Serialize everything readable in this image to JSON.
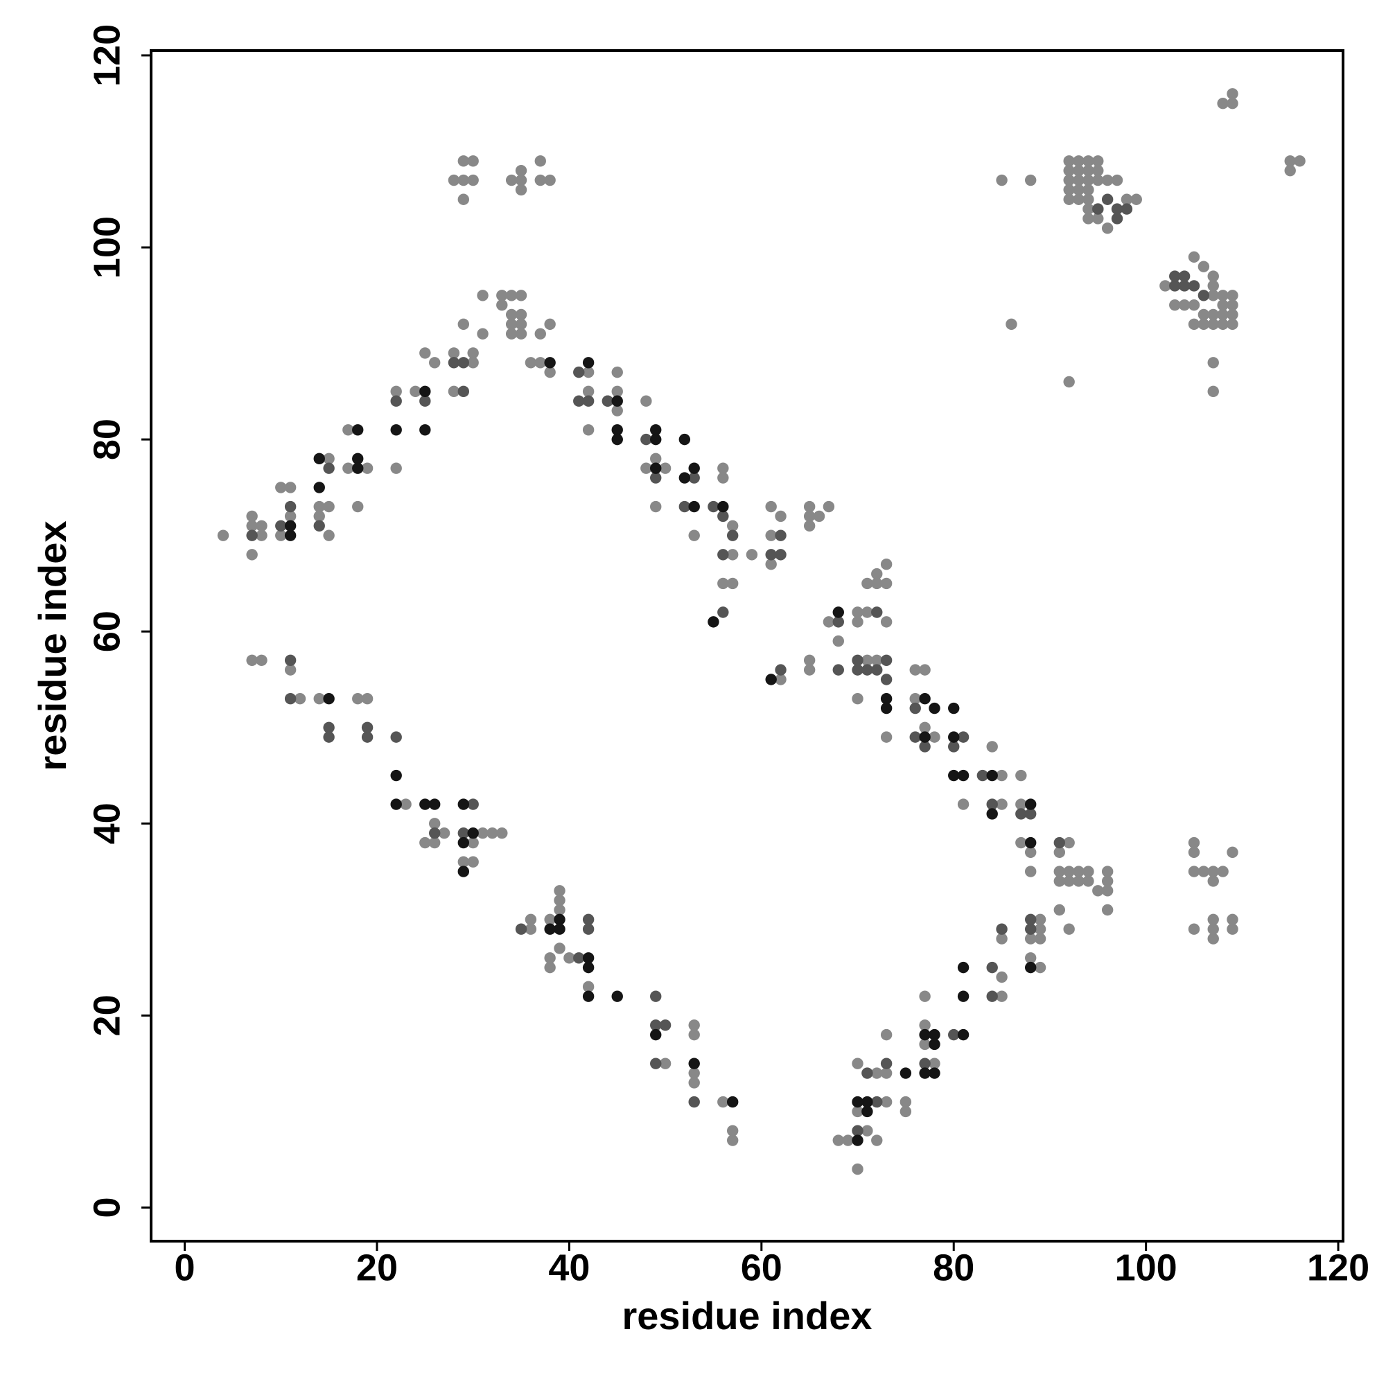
{
  "chart_data": {
    "type": "scatter",
    "x_label": "residue index",
    "y_label": "residue index",
    "xlim": [
      -3.5,
      120.5
    ],
    "ylim": [
      -3.5,
      120.5
    ],
    "xticks": [
      0,
      20,
      40,
      60,
      80,
      100,
      120
    ],
    "yticks": [
      0,
      20,
      40,
      60,
      80,
      100,
      120
    ],
    "grid": false,
    "series": [
      {
        "color": "#888888",
        "x": [
          4,
          7,
          7,
          8,
          8,
          7,
          10,
          11,
          10,
          11,
          14,
          15,
          14,
          15,
          15,
          17,
          17,
          18,
          19,
          22,
          22,
          24,
          25,
          26,
          28,
          30,
          30,
          28,
          29,
          31,
          31,
          33,
          34,
          35,
          33,
          34,
          35,
          34,
          35,
          34,
          35,
          37,
          38,
          36,
          37,
          38,
          42,
          42,
          42,
          44,
          45,
          45,
          45,
          48,
          48,
          49,
          50,
          49,
          53,
          56,
          56,
          57,
          57,
          56,
          57,
          59,
          61,
          62,
          61,
          61,
          65,
          65,
          66,
          67,
          65,
          67,
          68,
          70,
          70,
          71,
          71,
          72,
          72,
          73,
          73,
          73,
          72,
          71,
          70,
          73,
          76,
          76,
          77,
          77,
          78,
          81,
          85,
          85,
          84,
          87,
          87,
          87,
          88,
          88,
          91,
          91,
          92,
          92,
          91,
          92,
          93,
          93,
          94,
          94,
          95,
          96,
          96,
          96,
          96,
          91,
          92,
          89,
          89,
          88,
          89,
          88,
          89,
          85,
          85,
          85,
          77,
          77,
          77,
          78,
          73,
          72,
          73,
          73,
          70,
          70,
          71,
          72,
          68,
          70,
          75,
          75,
          69,
          65,
          65,
          62,
          56,
          57,
          57,
          53,
          53,
          53,
          53,
          50,
          42,
          39,
          39,
          39,
          38,
          36,
          36,
          39,
          38,
          38,
          40,
          30,
          29,
          31,
          32,
          33,
          30,
          27,
          26,
          25,
          26,
          23,
          18,
          19,
          14,
          12,
          11,
          7,
          8,
          28,
          29,
          30,
          29,
          30,
          29,
          34,
          35,
          35,
          35,
          37,
          37,
          38,
          85,
          88,
          86,
          92,
          107,
          107,
          108,
          109,
          109,
          115,
          116,
          115,
          99,
          105,
          105,
          105,
          106,
          107,
          107,
          108,
          109,
          105,
          107,
          107,
          107,
          109,
          109,
          102,
          107,
          107,
          108,
          108,
          109,
          109,
          109,
          109,
          108,
          107,
          106,
          105,
          106,
          107,
          108,
          105,
          106,
          107,
          105,
          104,
          103,
          92,
          93,
          94,
          95,
          92,
          93,
          94,
          95,
          92,
          93,
          94,
          95,
          92,
          93,
          94,
          92,
          93,
          94,
          95,
          94,
          94,
          95,
          96,
          96,
          97,
          98
        ],
        "y": [
          70,
          72,
          71,
          71,
          70,
          68,
          75,
          75,
          70,
          72,
          73,
          73,
          72,
          70,
          78,
          81,
          77,
          73,
          77,
          85,
          77,
          85,
          89,
          88,
          89,
          89,
          88,
          85,
          92,
          91,
          95,
          95,
          95,
          95,
          94,
          93,
          93,
          92,
          92,
          91,
          91,
          91,
          92,
          88,
          88,
          87,
          87,
          85,
          81,
          84,
          87,
          85,
          83,
          84,
          77,
          78,
          77,
          73,
          70,
          77,
          76,
          71,
          68,
          65,
          65,
          68,
          73,
          72,
          70,
          67,
          73,
          72,
          72,
          73,
          71,
          61,
          59,
          62,
          61,
          62,
          65,
          65,
          66,
          65,
          67,
          61,
          57,
          57,
          53,
          49,
          53,
          56,
          56,
          50,
          49,
          42,
          45,
          42,
          48,
          45,
          42,
          38,
          37,
          35,
          37,
          35,
          38,
          34,
          34,
          35,
          35,
          34,
          35,
          34,
          33,
          35,
          34,
          33,
          31,
          31,
          29,
          30,
          29,
          28,
          28,
          26,
          25,
          28,
          24,
          22,
          22,
          19,
          17,
          15,
          18,
          14,
          14,
          11,
          15,
          10,
          8,
          7,
          7,
          4,
          11,
          10,
          7,
          57,
          56,
          55,
          11,
          8,
          7,
          19,
          18,
          14,
          13,
          15,
          23,
          33,
          32,
          31,
          30,
          30,
          29,
          27,
          26,
          25,
          26,
          36,
          36,
          39,
          39,
          39,
          38,
          39,
          40,
          38,
          38,
          42,
          53,
          53,
          53,
          53,
          56,
          57,
          57,
          107,
          107,
          107,
          109,
          109,
          105,
          107,
          108,
          107,
          106,
          109,
          107,
          107,
          107,
          107,
          92,
          86,
          88,
          85,
          115,
          116,
          115,
          109,
          109,
          108,
          105,
          38,
          37,
          35,
          35,
          35,
          34,
          35,
          37,
          29,
          30,
          29,
          28,
          30,
          29,
          96,
          96,
          95,
          95,
          94,
          95,
          94,
          93,
          92,
          92,
          92,
          92,
          92,
          93,
          93,
          93,
          99,
          98,
          97,
          94,
          94,
          94,
          109,
          109,
          109,
          109,
          108,
          108,
          108,
          108,
          107,
          107,
          107,
          107,
          106,
          106,
          106,
          105,
          105,
          105,
          104,
          104,
          103,
          103,
          102,
          107,
          107,
          105
        ]
      },
      {
        "color": "#555555",
        "x": [
          11,
          7,
          10,
          15,
          14,
          22,
          25,
          28,
          29,
          29,
          41,
          41,
          42,
          44,
          48,
          49,
          52,
          53,
          55,
          56,
          57,
          56,
          56,
          62,
          61,
          62,
          62,
          68,
          68,
          70,
          70,
          71,
          72,
          73,
          73,
          72,
          76,
          76,
          77,
          80,
          81,
          83,
          84,
          87,
          88,
          91,
          88,
          88,
          84,
          85,
          84,
          80,
          77,
          73,
          72,
          70,
          71,
          11,
          11,
          15,
          15,
          19,
          19,
          22,
          26,
          30,
          29,
          35,
          41,
          42,
          42,
          49,
          49,
          50,
          49,
          53,
          104,
          104,
          103,
          103,
          105,
          106,
          97,
          97,
          98,
          96,
          95
        ],
        "y": [
          73,
          70,
          71,
          77,
          71,
          84,
          84,
          88,
          88,
          85,
          87,
          84,
          84,
          84,
          80,
          76,
          73,
          76,
          73,
          72,
          70,
          68,
          62,
          68,
          68,
          70,
          56,
          61,
          56,
          57,
          56,
          56,
          56,
          57,
          55,
          62,
          52,
          49,
          48,
          48,
          49,
          45,
          42,
          41,
          41,
          38,
          29,
          30,
          25,
          29,
          22,
          18,
          15,
          15,
          11,
          8,
          14,
          57,
          53,
          50,
          49,
          49,
          50,
          49,
          39,
          42,
          39,
          29,
          26,
          30,
          29,
          22,
          19,
          19,
          15,
          11,
          97,
          96,
          96,
          97,
          96,
          95,
          104,
          103,
          104,
          105,
          104
        ]
      },
      {
        "color": "#151515",
        "x": [
          18,
          22,
          14,
          18,
          18,
          14,
          11,
          11,
          25,
          25,
          38,
          42,
          45,
          45,
          45,
          49,
          49,
          49,
          52,
          53,
          53,
          52,
          56,
          55,
          61,
          68,
          73,
          73,
          77,
          77,
          78,
          80,
          80,
          81,
          80,
          84,
          84,
          88,
          88,
          88,
          81,
          81,
          81,
          78,
          78,
          77,
          78,
          77,
          75,
          71,
          70,
          71,
          70,
          22,
          22,
          25,
          26,
          15,
          29,
          29,
          30,
          29,
          38,
          39,
          39,
          42,
          42,
          42,
          45,
          49,
          53,
          57
        ],
        "y": [
          81,
          81,
          78,
          78,
          77,
          75,
          70,
          71,
          85,
          81,
          88,
          88,
          84,
          81,
          80,
          81,
          80,
          77,
          80,
          77,
          73,
          76,
          73,
          61,
          55,
          62,
          53,
          52,
          53,
          49,
          52,
          52,
          49,
          45,
          45,
          45,
          41,
          42,
          38,
          25,
          25,
          22,
          18,
          18,
          17,
          18,
          14,
          14,
          14,
          11,
          11,
          10,
          7,
          45,
          42,
          42,
          42,
          53,
          42,
          38,
          39,
          35,
          29,
          30,
          29,
          26,
          25,
          22,
          22,
          18,
          15,
          11
        ]
      }
    ]
  }
}
